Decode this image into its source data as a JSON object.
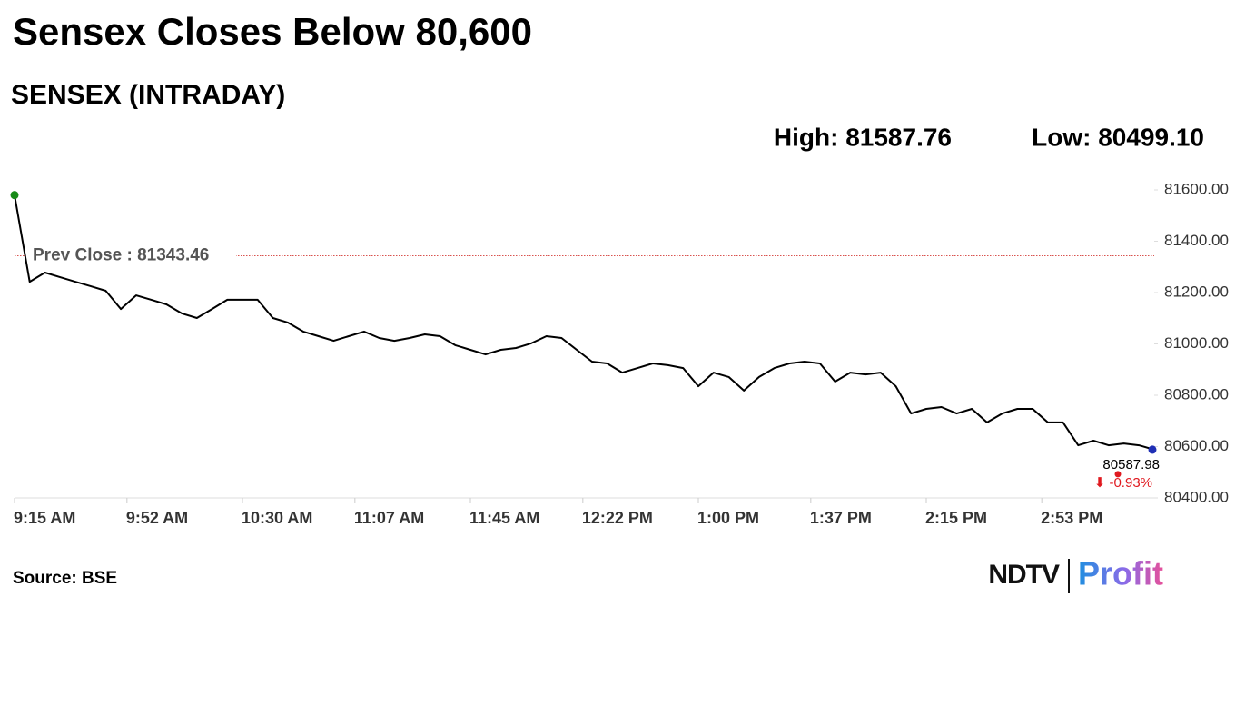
{
  "chart_data": {
    "type": "line",
    "title": "Sensex Closes Below 80,600",
    "subtitle": "SENSEX (INTRADAY)",
    "high": {
      "value": 81587.76,
      "label": "High: 81587.76"
    },
    "low": {
      "value": 80499.1,
      "label": "Low: 80499.10"
    },
    "prev_close": {
      "value": 81343.46,
      "label": "Prev Close : 81343.46"
    },
    "change": {
      "value": -0.93,
      "label": "⬇ -0.93%"
    },
    "color": "#000000",
    "start_color": "#178a17",
    "end_color": "#1f2fb5",
    "prev_close_color": "#d9534f",
    "change_color": "#e0191f",
    "x": [
      "09:15",
      "09:20",
      "09:25",
      "09:30",
      "09:35",
      "09:40",
      "09:45",
      "09:50",
      "09:55",
      "10:00",
      "10:05",
      "10:10",
      "10:15",
      "10:20",
      "10:25",
      "10:30",
      "10:35",
      "10:40",
      "10:45",
      "10:50",
      "10:55",
      "11:00",
      "11:05",
      "11:10",
      "11:15",
      "11:20",
      "11:25",
      "11:30",
      "11:35",
      "11:40",
      "11:45",
      "11:50",
      "11:55",
      "12:00",
      "12:05",
      "12:10",
      "12:15",
      "12:20",
      "12:25",
      "12:30",
      "12:35",
      "12:40",
      "12:45",
      "12:50",
      "12:55",
      "13:00",
      "13:05",
      "13:10",
      "13:15",
      "13:20",
      "13:25",
      "13:30",
      "13:35",
      "13:40",
      "13:45",
      "13:50",
      "13:55",
      "14:00",
      "14:05",
      "14:10",
      "14:15",
      "14:20",
      "14:25",
      "14:30",
      "14:35",
      "14:40",
      "14:45",
      "14:50",
      "14:55",
      "15:00",
      "15:05",
      "15:10",
      "15:15",
      "15:20",
      "15:25",
      "15:30"
    ],
    "values": [
      81580,
      81242,
      81278,
      81260,
      81242,
      81225,
      81207,
      81136,
      81189,
      81172,
      81154,
      81119,
      81101,
      81136,
      81172,
      81172,
      81172,
      81101,
      81083,
      81048,
      81030,
      81012,
      81030,
      81048,
      81023,
      81012,
      81023,
      81037,
      81030,
      80995,
      80977,
      80959,
      80977,
      80984,
      81002,
      81030,
      81023,
      80977,
      80931,
      80924,
      80888,
      80906,
      80924,
      80917,
      80906,
      80835,
      80888,
      80871,
      80818,
      80871,
      80906,
      80924,
      80931,
      80924,
      80853,
      80888,
      80881,
      80888,
      80835,
      80729,
      80747,
      80754,
      80729,
      80747,
      80694,
      80729,
      80747,
      80747,
      80694,
      80694,
      80605,
      80623,
      80605,
      80612,
      80605,
      80587.98
    ],
    "xlim": [
      "09:15",
      "15:30"
    ],
    "xticks": [
      {
        "value": "09:15",
        "label": "9:15 AM"
      },
      {
        "value": "09:52",
        "label": "9:52 AM"
      },
      {
        "value": "10:30",
        "label": "10:30 AM"
      },
      {
        "value": "11:07",
        "label": "11:07 AM"
      },
      {
        "value": "11:45",
        "label": "11:45 AM"
      },
      {
        "value": "12:22",
        "label": "12:22 PM"
      },
      {
        "value": "13:00",
        "label": "1:00 PM"
      },
      {
        "value": "13:37",
        "label": "1:37 PM"
      },
      {
        "value": "14:15",
        "label": "2:15 PM"
      },
      {
        "value": "14:53",
        "label": "2:53 PM"
      }
    ],
    "ylim": [
      80400,
      81600
    ],
    "yticks": [
      {
        "value": 80400,
        "label": "80400.00"
      },
      {
        "value": 80600,
        "label": "80600.00"
      },
      {
        "value": 80800,
        "label": "80800.00"
      },
      {
        "value": 81000,
        "label": "81000.00"
      },
      {
        "value": 81200,
        "label": "81200.00"
      },
      {
        "value": 81400,
        "label": "81400.00"
      },
      {
        "value": 81600,
        "label": "81600.00"
      }
    ],
    "source": "Source: BSE",
    "brand": {
      "name": "NDTV",
      "product": "Profit"
    }
  }
}
